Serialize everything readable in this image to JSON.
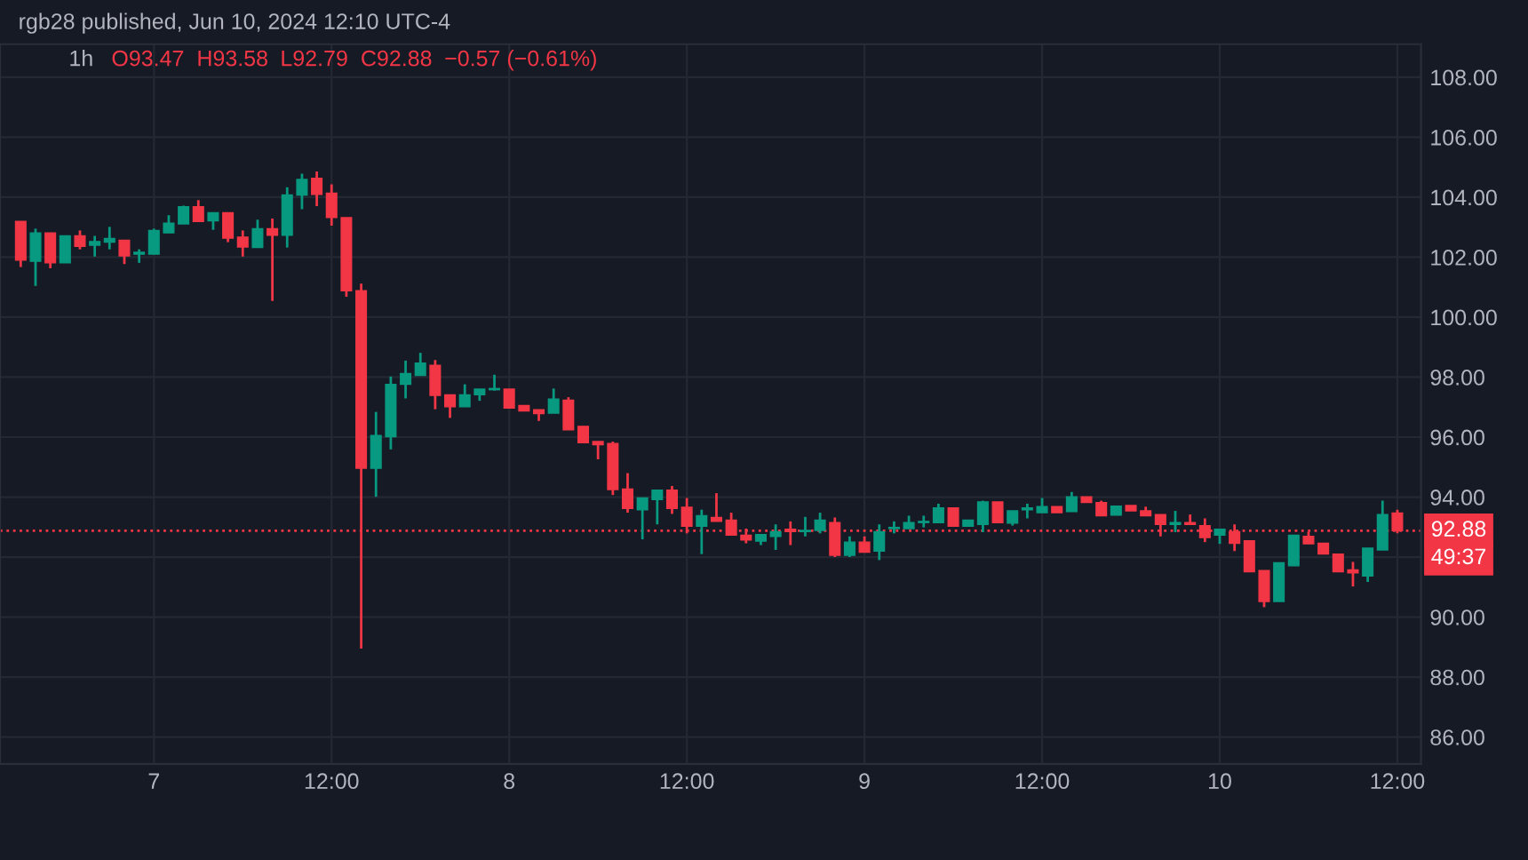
{
  "chart_data": {
    "type": "candlestick",
    "title": "rgb28 published, Jun 10, 2024 12:10 UTC-4",
    "subtitle": "1h",
    "annotations": [
      "O93.47",
      "H93.58",
      "L92.79",
      "C92.88",
      "−0.57 (−0.61%)",
      "49:37"
    ],
    "x": [
      "2024-06-06T15:00",
      "2024-06-06T16:00",
      "2024-06-06T17:00",
      "2024-06-06T18:00",
      "2024-06-06T19:00",
      "2024-06-06T20:00",
      "2024-06-06T21:00",
      "2024-06-06T22:00",
      "2024-06-06T23:00",
      "2024-06-07T00:00",
      "2024-06-07T01:00",
      "2024-06-07T02:00",
      "2024-06-07T03:00",
      "2024-06-07T04:00",
      "2024-06-07T05:00",
      "2024-06-07T06:00",
      "2024-06-07T07:00",
      "2024-06-07T08:00",
      "2024-06-07T09:00",
      "2024-06-07T10:00",
      "2024-06-07T11:00",
      "2024-06-07T12:00",
      "2024-06-07T13:00",
      "2024-06-07T14:00",
      "2024-06-07T15:00",
      "2024-06-07T16:00",
      "2024-06-07T17:00",
      "2024-06-07T18:00",
      "2024-06-07T19:00",
      "2024-06-07T20:00",
      "2024-06-07T21:00",
      "2024-06-07T22:00",
      "2024-06-07T23:00",
      "2024-06-08T00:00",
      "2024-06-08T01:00",
      "2024-06-08T02:00",
      "2024-06-08T03:00",
      "2024-06-08T04:00",
      "2024-06-08T05:00",
      "2024-06-08T06:00",
      "2024-06-08T07:00",
      "2024-06-08T08:00",
      "2024-06-08T09:00",
      "2024-06-08T10:00",
      "2024-06-08T11:00",
      "2024-06-08T12:00",
      "2024-06-08T13:00",
      "2024-06-08T14:00",
      "2024-06-08T15:00",
      "2024-06-08T16:00",
      "2024-06-08T17:00",
      "2024-06-08T18:00",
      "2024-06-08T19:00",
      "2024-06-08T20:00",
      "2024-06-08T21:00",
      "2024-06-08T22:00",
      "2024-06-08T23:00",
      "2024-06-09T00:00",
      "2024-06-09T01:00",
      "2024-06-09T02:00",
      "2024-06-09T03:00",
      "2024-06-09T04:00",
      "2024-06-09T05:00",
      "2024-06-09T06:00",
      "2024-06-09T07:00",
      "2024-06-09T08:00",
      "2024-06-09T09:00",
      "2024-06-09T10:00",
      "2024-06-09T11:00",
      "2024-06-09T12:00",
      "2024-06-09T13:00",
      "2024-06-09T14:00",
      "2024-06-09T15:00",
      "2024-06-09T16:00",
      "2024-06-09T17:00",
      "2024-06-09T18:00",
      "2024-06-09T19:00",
      "2024-06-09T20:00",
      "2024-06-09T21:00",
      "2024-06-09T22:00",
      "2024-06-09T23:00",
      "2024-06-10T00:00",
      "2024-06-10T01:00",
      "2024-06-10T02:00",
      "2024-06-10T03:00",
      "2024-06-10T04:00",
      "2024-06-10T05:00",
      "2024-06-10T06:00",
      "2024-06-10T07:00",
      "2024-06-10T08:00",
      "2024-06-10T09:00",
      "2024-06-10T10:00",
      "2024-06-10T11:00",
      "2024-06-10T12:00"
    ],
    "ohlc": [
      [
        103.19,
        103.19,
        101.67,
        101.9
      ],
      [
        101.86,
        102.95,
        101.04,
        102.81
      ],
      [
        102.81,
        102.81,
        101.63,
        101.81
      ],
      [
        101.81,
        102.71,
        101.81,
        102.71
      ],
      [
        102.71,
        102.89,
        102.26,
        102.36
      ],
      [
        102.4,
        102.71,
        102.02,
        102.52
      ],
      [
        102.5,
        103.01,
        102.26,
        102.62
      ],
      [
        102.56,
        102.56,
        101.77,
        102.04
      ],
      [
        102.1,
        102.26,
        101.81,
        102.16
      ],
      [
        102.1,
        102.95,
        102.1,
        102.89
      ],
      [
        102.81,
        103.4,
        102.81,
        103.13
      ],
      [
        103.11,
        103.72,
        103.11,
        103.68
      ],
      [
        103.68,
        103.9,
        103.19,
        103.19
      ],
      [
        103.21,
        103.48,
        102.91,
        103.48
      ],
      [
        103.48,
        103.48,
        102.5,
        102.63
      ],
      [
        102.67,
        102.89,
        102.02,
        102.34
      ],
      [
        102.32,
        103.25,
        102.32,
        102.95
      ],
      [
        102.95,
        103.29,
        100.54,
        102.73
      ],
      [
        102.73,
        104.33,
        102.32,
        104.07
      ],
      [
        104.07,
        104.78,
        103.6,
        104.59
      ],
      [
        104.63,
        104.86,
        103.7,
        104.09
      ],
      [
        104.13,
        104.43,
        103.05,
        103.32
      ],
      [
        103.32,
        103.32,
        100.68,
        100.88
      ],
      [
        100.88,
        101.12,
        88.95,
        94.96
      ],
      [
        94.96,
        96.84,
        94.01,
        96.05
      ],
      [
        96.01,
        98.02,
        95.59,
        97.76
      ],
      [
        97.76,
        98.55,
        97.29,
        98.12
      ],
      [
        98.06,
        98.81,
        98.06,
        98.47
      ],
      [
        98.39,
        98.57,
        96.93,
        97.39
      ],
      [
        97.41,
        97.41,
        96.64,
        97.01
      ],
      [
        97.01,
        97.76,
        97.01,
        97.41
      ],
      [
        97.41,
        97.6,
        97.21,
        97.6
      ],
      [
        97.58,
        98.08,
        97.55,
        97.62
      ],
      [
        97.6,
        97.6,
        96.97,
        96.97
      ],
      [
        97.05,
        97.05,
        96.87,
        96.87
      ],
      [
        96.91,
        96.91,
        96.54,
        96.78
      ],
      [
        96.8,
        97.62,
        96.8,
        97.27
      ],
      [
        97.23,
        97.33,
        96.24,
        96.24
      ],
      [
        96.36,
        96.36,
        95.81,
        95.81
      ],
      [
        95.85,
        95.85,
        95.26,
        95.75
      ],
      [
        95.79,
        95.85,
        94.07,
        94.25
      ],
      [
        94.27,
        94.8,
        93.48,
        93.62
      ],
      [
        93.58,
        93.97,
        92.59,
        93.97
      ],
      [
        93.92,
        94.23,
        93.09,
        94.23
      ],
      [
        94.23,
        94.37,
        93.44,
        93.62
      ],
      [
        93.66,
        93.97,
        92.79,
        93.03
      ],
      [
        93.03,
        93.58,
        92.1,
        93.38
      ],
      [
        93.32,
        94.13,
        93.19,
        93.19
      ],
      [
        93.23,
        93.48,
        92.73,
        92.73
      ],
      [
        92.73,
        92.95,
        92.46,
        92.57
      ],
      [
        92.53,
        92.75,
        92.4,
        92.75
      ],
      [
        92.69,
        93.09,
        92.24,
        92.85
      ],
      [
        92.93,
        93.19,
        92.4,
        92.85
      ],
      [
        92.85,
        93.34,
        92.69,
        92.89
      ],
      [
        92.89,
        93.48,
        92.79,
        93.23
      ],
      [
        93.15,
        93.32,
        92.0,
        92.06
      ],
      [
        92.06,
        92.69,
        92.0,
        92.5
      ],
      [
        92.5,
        92.69,
        92.16,
        92.16
      ],
      [
        92.2,
        93.09,
        91.9,
        92.85
      ],
      [
        92.95,
        93.19,
        92.79,
        92.99
      ],
      [
        92.95,
        93.38,
        92.95,
        93.15
      ],
      [
        93.15,
        93.38,
        92.99,
        93.19
      ],
      [
        93.15,
        93.78,
        93.15,
        93.64
      ],
      [
        93.64,
        93.64,
        93.03,
        93.03
      ],
      [
        93.03,
        93.23,
        93.03,
        93.23
      ],
      [
        93.09,
        93.88,
        92.83,
        93.84
      ],
      [
        93.84,
        93.84,
        93.15,
        93.15
      ],
      [
        93.13,
        93.54,
        93.05,
        93.54
      ],
      [
        93.58,
        93.78,
        93.29,
        93.64
      ],
      [
        93.48,
        93.97,
        93.48,
        93.68
      ],
      [
        93.68,
        93.68,
        93.48,
        93.48
      ],
      [
        93.52,
        94.17,
        93.52,
        94.01
      ],
      [
        94.01,
        94.01,
        93.82,
        93.82
      ],
      [
        93.82,
        93.88,
        93.38,
        93.38
      ],
      [
        93.4,
        93.7,
        93.4,
        93.7
      ],
      [
        93.72,
        93.72,
        93.54,
        93.54
      ],
      [
        93.54,
        93.68,
        93.38,
        93.38
      ],
      [
        93.42,
        93.42,
        92.69,
        93.09
      ],
      [
        93.09,
        93.54,
        92.83,
        93.15
      ],
      [
        93.15,
        93.42,
        93.09,
        93.09
      ],
      [
        93.05,
        93.29,
        92.5,
        92.65
      ],
      [
        92.73,
        92.93,
        92.44,
        92.93
      ],
      [
        92.85,
        93.09,
        92.2,
        92.46
      ],
      [
        92.54,
        92.54,
        91.51,
        91.51
      ],
      [
        91.55,
        91.55,
        90.33,
        90.52
      ],
      [
        90.52,
        91.81,
        90.52,
        91.81
      ],
      [
        91.71,
        92.73,
        91.71,
        92.73
      ],
      [
        92.69,
        92.85,
        92.44,
        92.44
      ],
      [
        92.46,
        92.46,
        92.1,
        92.1
      ],
      [
        92.1,
        92.1,
        91.51,
        91.51
      ],
      [
        91.57,
        91.84,
        91.02,
        91.47
      ],
      [
        91.37,
        92.3,
        91.17,
        92.3
      ],
      [
        92.24,
        93.88,
        92.24,
        93.42
      ],
      [
        93.47,
        93.58,
        92.79,
        92.88
      ]
    ],
    "colors": [
      "#f23645",
      "#089981",
      "#f23645",
      "#089981",
      "#f23645",
      "#089981",
      "#089981",
      "#f23645",
      "#089981",
      "#089981",
      "#089981",
      "#089981",
      "#f23645",
      "#089981",
      "#f23645",
      "#f23645",
      "#089981",
      "#f23645",
      "#089981",
      "#089981",
      "#f23645",
      "#f23645",
      "#f23645",
      "#f23645",
      "#089981",
      "#089981",
      "#089981",
      "#089981",
      "#f23645",
      "#f23645",
      "#089981",
      "#089981",
      "#089981",
      "#f23645",
      "#f23645",
      "#f23645",
      "#089981",
      "#f23645",
      "#f23645",
      "#f23645",
      "#f23645",
      "#f23645",
      "#089981",
      "#089981",
      "#f23645",
      "#f23645",
      "#089981",
      "#f23645",
      "#f23645",
      "#f23645",
      "#089981",
      "#089981",
      "#f23645",
      "#089981",
      "#089981",
      "#f23645",
      "#089981",
      "#f23645",
      "#089981",
      "#089981",
      "#089981",
      "#089981",
      "#089981",
      "#f23645",
      "#089981",
      "#089981",
      "#f23645",
      "#089981",
      "#089981",
      "#089981",
      "#f23645",
      "#089981",
      "#f23645",
      "#f23645",
      "#089981",
      "#f23645",
      "#f23645",
      "#f23645",
      "#089981",
      "#f23645",
      "#f23645",
      "#089981",
      "#f23645",
      "#f23645",
      "#f23645",
      "#089981",
      "#089981",
      "#f23645",
      "#f23645",
      "#f23645",
      "#f23645",
      "#089981",
      "#089981",
      "#f23645"
    ],
    "xlim": [
      "2024-06-06T13:36",
      "2024-06-10T13:36"
    ],
    "xticks": [
      {
        "value": "2024-06-07",
        "label": "7"
      },
      {
        "value": "2024-06-07T12:00",
        "label": "12:00"
      },
      {
        "value": "2024-06-08",
        "label": "8"
      },
      {
        "value": "2024-06-08T12:00",
        "label": "12:00"
      },
      {
        "value": "2024-06-09",
        "label": "9"
      },
      {
        "value": "2024-06-09T12:00",
        "label": "12:00"
      },
      {
        "value": "2024-06-10",
        "label": "10"
      },
      {
        "value": "2024-06-10T12:00",
        "label": "12:00"
      }
    ],
    "ylim": [
      85.1,
      109.1
    ],
    "yticks": [
      {
        "value": 86,
        "label": "86.00"
      },
      {
        "value": 88,
        "label": "88.00"
      },
      {
        "value": 90,
        "label": "90.00"
      },
      {
        "value": 92,
        "label": null
      },
      {
        "value": 94,
        "label": "94.00"
      },
      {
        "value": 96,
        "label": "96.00"
      },
      {
        "value": 98,
        "label": "98.00"
      },
      {
        "value": 100,
        "label": "100.00"
      },
      {
        "value": 102,
        "label": "102.00"
      },
      {
        "value": 104,
        "label": "104.00"
      },
      {
        "value": 106,
        "label": "106.00"
      },
      {
        "value": 108,
        "label": "108.00"
      }
    ],
    "grid": true,
    "ref_lines": [
      {
        "axis": "y",
        "value": 92.88,
        "label": "92.88",
        "color": "#f23645",
        "line_style": "dotted"
      }
    ]
  }
}
